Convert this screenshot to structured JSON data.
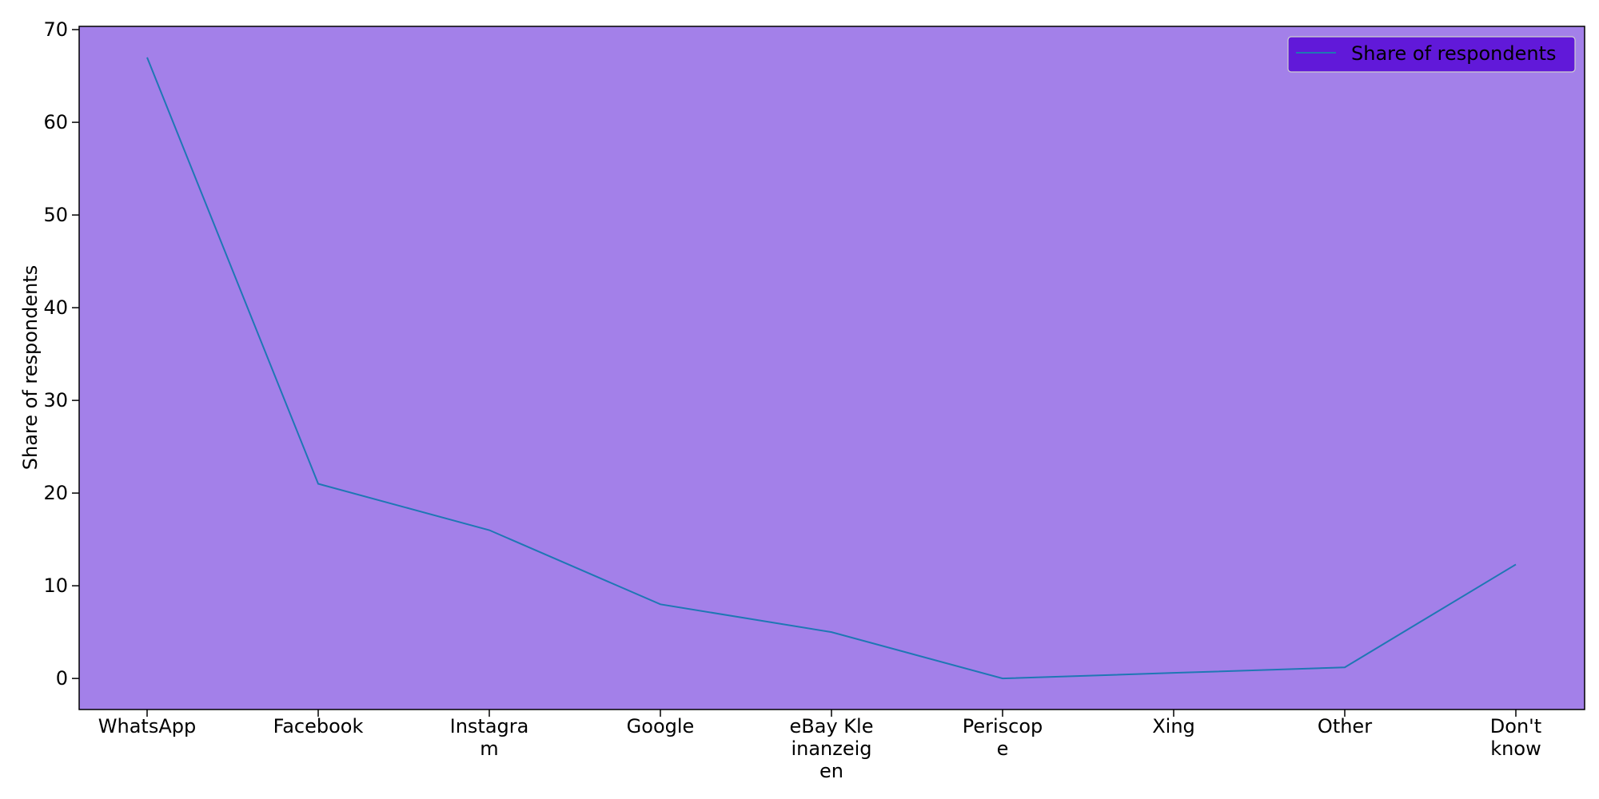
{
  "colors": {
    "plot_background": "#a380e9",
    "legend_background": "#6119d9",
    "series_line": "#1f77b4",
    "axes": "#000000"
  },
  "chart_data": {
    "type": "line",
    "title": "",
    "xlabel": "",
    "ylabel": "Share of respondents",
    "categories": [
      [
        "WhatsApp"
      ],
      [
        "Facebook"
      ],
      [
        "Instagra",
        "m"
      ],
      [
        "Google"
      ],
      [
        "eBay Kle",
        "inanzeig",
        "en"
      ],
      [
        "Periscop",
        "e"
      ],
      [
        "Xing"
      ],
      [
        "Other"
      ],
      [
        "Don't",
        "know"
      ]
    ],
    "series": [
      {
        "name": "Share of respondents",
        "values": [
          67,
          21,
          16,
          8,
          5,
          0,
          0.6,
          1.2,
          12.3
        ]
      }
    ],
    "ylim": [
      -3.35,
      70.35
    ],
    "yticks": [
      0,
      10,
      20,
      30,
      40,
      50,
      60,
      70
    ],
    "grid": false,
    "legend": "top-right"
  }
}
